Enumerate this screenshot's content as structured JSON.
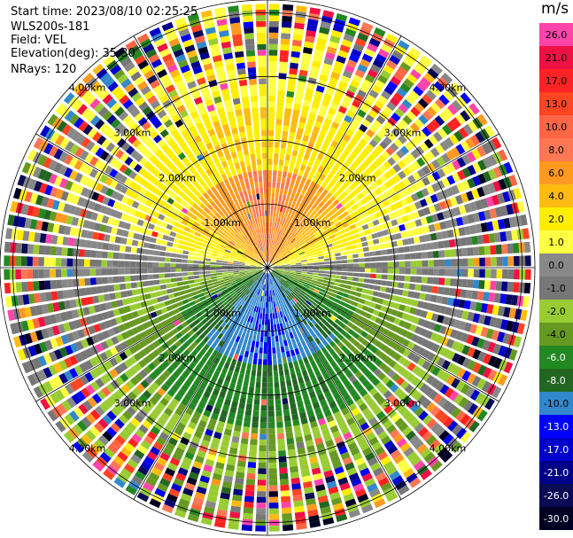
{
  "header": {
    "start_time": "Start time: 2023/08/10 02:25:25",
    "site": "WLS200s-181",
    "field": "Field: VEL",
    "elevation": "Elevation(deg): 35.30",
    "nrays": "NRays: 120"
  },
  "colorbar": {
    "unit": "m/s",
    "levels": [
      {
        "label": "26.0",
        "color": "#ff44aa"
      },
      {
        "label": "21.0",
        "color": "#ee1144"
      },
      {
        "label": "17.0",
        "color": "#ff2222"
      },
      {
        "label": "13.0",
        "color": "#ff4422"
      },
      {
        "label": "10.0",
        "color": "#ff6644"
      },
      {
        "label": "8.0",
        "color": "#ff7755"
      },
      {
        "label": "6.0",
        "color": "#ff9922"
      },
      {
        "label": "4.0",
        "color": "#ffbb11"
      },
      {
        "label": "2.0",
        "color": "#ffee00"
      },
      {
        "label": "1.0",
        "color": "#ffff44"
      },
      {
        "label": "0.0",
        "color": "#888888"
      },
      {
        "label": "-1.0",
        "color": "#777777"
      },
      {
        "label": "-2.0",
        "color": "#99cc33"
      },
      {
        "label": "-4.0",
        "color": "#669922"
      },
      {
        "label": "-6.0",
        "color": "#228822"
      },
      {
        "label": "-8.0",
        "color": "#226622"
      },
      {
        "label": "-10.0",
        "color": "#3388cc"
      },
      {
        "label": "-13.0",
        "color": "#0000ff"
      },
      {
        "label": "-17.0",
        "color": "#0000cc"
      },
      {
        "label": "-21.0",
        "color": "#000088"
      },
      {
        "label": "-26.0",
        "color": "#0a0a55"
      },
      {
        "label": "-30.0",
        "color": "#000022"
      }
    ]
  },
  "chart_data": {
    "type": "ppi_polar",
    "field": "VEL",
    "units": "m/s",
    "nrays": 120,
    "elevation_deg": 35.3,
    "range_rings_km": [
      1.0,
      2.0,
      3.0,
      4.0
    ],
    "ring_labels": [
      "1.00km",
      "2.00km",
      "3.00km",
      "4.00km"
    ],
    "azimuth_spokes_deg": [
      0,
      30,
      60,
      90,
      120,
      150,
      180,
      210,
      240,
      270,
      300,
      330
    ],
    "max_range_km": 4.2,
    "pattern_description_velocity": {
      "north_sector_near": 8.0,
      "north_sector_mid": 4.0,
      "north_sector_far": 2.0,
      "south_sector_near": -10.0,
      "south_sector_mid": -6.0,
      "south_sector_far": -2.0,
      "east_west_axis": 0.0
    }
  }
}
